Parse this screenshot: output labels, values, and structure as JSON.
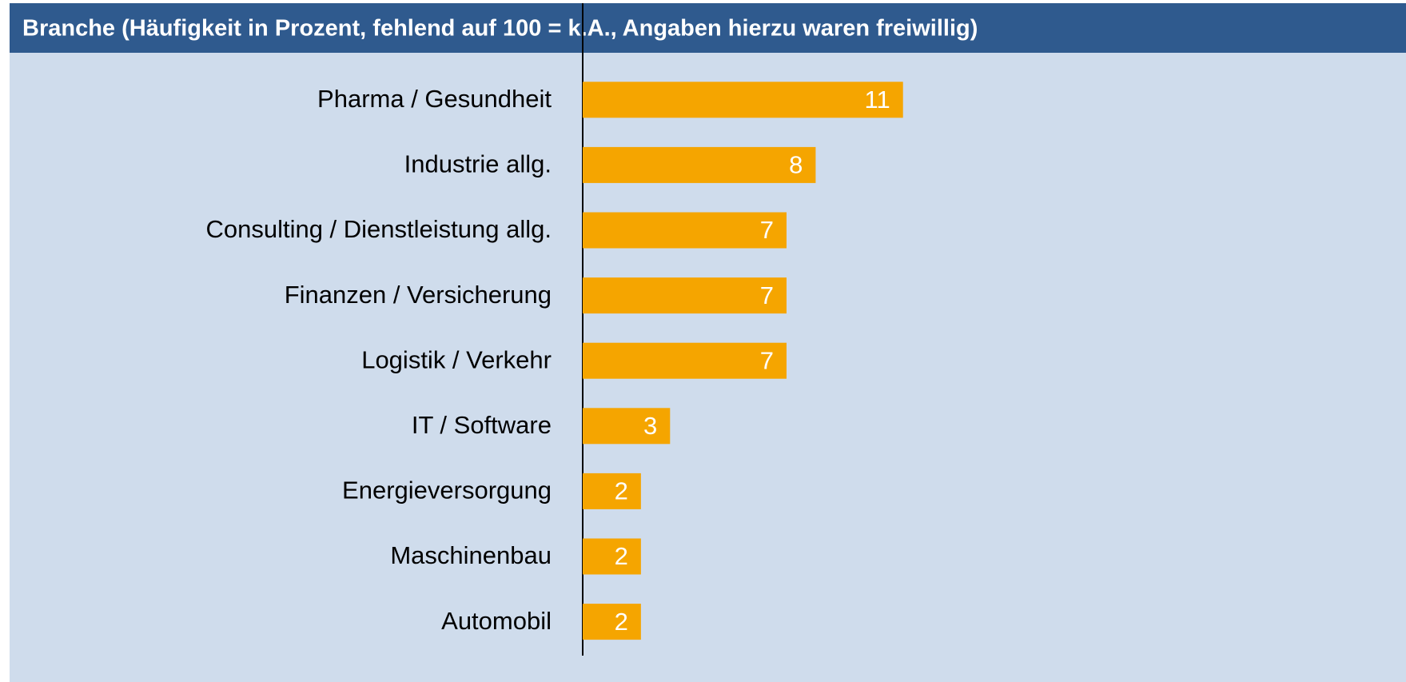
{
  "chart_data": {
    "type": "barh",
    "title": "Branche (Häufigkeit in Prozent, fehlend auf 100 = k.A., Angaben hierzu waren freiwillig)",
    "categories": [
      "Pharma / Gesundheit",
      "Industrie allg.",
      "Consulting / Dienstleistung allg.",
      "Finanzen / Versicherung",
      "Logistik / Verkehr",
      "IT / Software",
      "Energieversorgung",
      "Maschinenbau",
      "Automobil"
    ],
    "values": [
      11,
      8,
      7,
      7,
      7,
      3,
      2,
      2,
      2
    ],
    "color": "#f5a500",
    "xlim": [
      0,
      28
    ]
  }
}
